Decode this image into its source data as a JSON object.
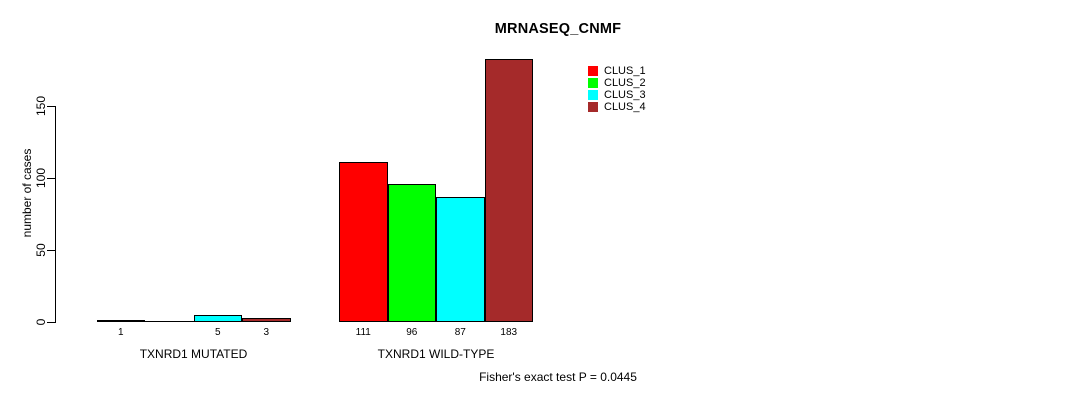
{
  "chart": {
    "title": "MRNASEQ_CNMF",
    "ylabel": "number of cases",
    "footer": "Fisher's exact test P = 0.0445"
  },
  "legend": {
    "position": "top-right",
    "items": [
      {
        "label": "CLUS_1",
        "color": "#FF0000"
      },
      {
        "label": "CLUS_2",
        "color": "#00FF00"
      },
      {
        "label": "CLUS_3",
        "color": "#00FFFF"
      },
      {
        "label": "CLUS_4",
        "color": "#A52A2A"
      }
    ]
  },
  "chart_data": {
    "type": "bar",
    "title": "MRNASEQ_CNMF",
    "ylabel": "number of cases",
    "xlabel": "",
    "ylim": [
      0,
      190
    ],
    "yticks": [
      0,
      50,
      100,
      150
    ],
    "grid": false,
    "legend_position": "top-right",
    "categories": [
      "TXNRD1 MUTATED",
      "TXNRD1 WILD-TYPE"
    ],
    "series": [
      {
        "name": "CLUS_1",
        "color": "#FF0000",
        "values": [
          1,
          111
        ]
      },
      {
        "name": "CLUS_2",
        "color": "#00FF00",
        "values": [
          0,
          96
        ]
      },
      {
        "name": "CLUS_3",
        "color": "#00FFFF",
        "values": [
          5,
          87
        ]
      },
      {
        "name": "CLUS_4",
        "color": "#A52A2A",
        "values": [
          3,
          183
        ]
      }
    ],
    "bar_value_labels": [
      [
        "1",
        "",
        "5",
        "3"
      ],
      [
        "111",
        "96",
        "87",
        "183"
      ]
    ],
    "annotation": "Fisher's exact test P = 0.0445"
  }
}
